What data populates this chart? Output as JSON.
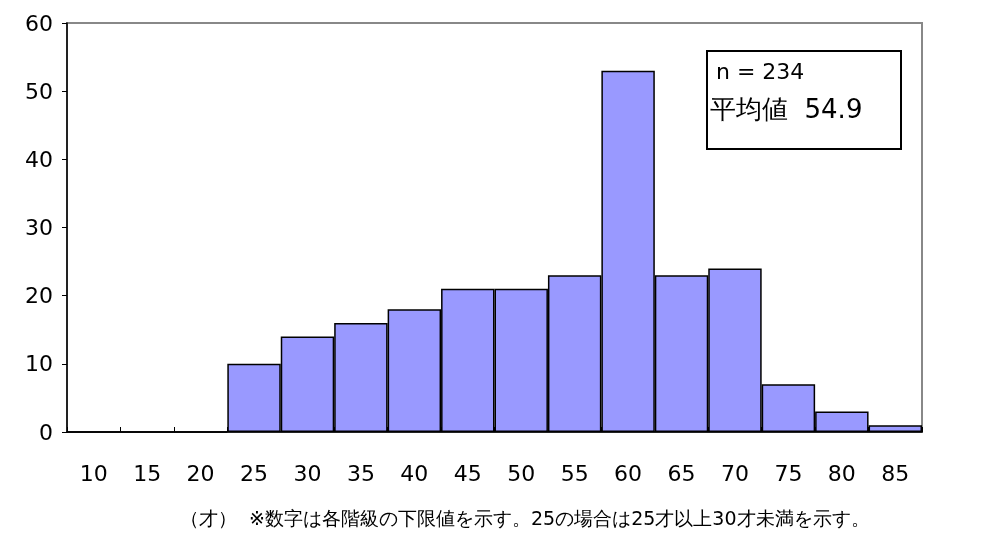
{
  "chart_data": {
    "type": "bar",
    "xlabel": "（才）",
    "categories": [
      "10",
      "15",
      "20",
      "25",
      "30",
      "35",
      "40",
      "45",
      "50",
      "55",
      "60",
      "65",
      "70",
      "75",
      "80",
      "85"
    ],
    "values": [
      0,
      0,
      0,
      10,
      14,
      16,
      18,
      21,
      21,
      23,
      53,
      23,
      24,
      7,
      3,
      1
    ],
    "color": "#9999ff",
    "ylim": [
      0,
      60
    ],
    "yticks": [
      0,
      10,
      20,
      30,
      40,
      50,
      60
    ],
    "grid": false,
    "annotations": [
      "n = 234",
      "平均値  54.9",
      "※数字は各階級の下限値を示す。25の場合は25才以上30才未満を示す。"
    ]
  }
}
